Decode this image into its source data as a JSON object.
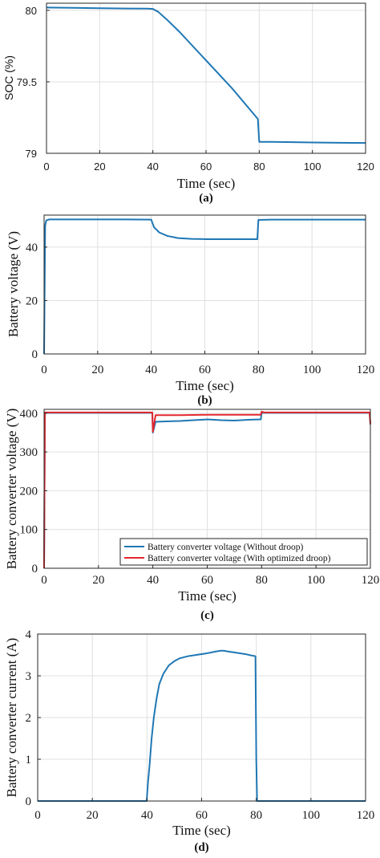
{
  "chart_data": [
    {
      "type": "line",
      "caption": "(a)",
      "xlabel": "Time (sec)",
      "ylabel": "SOC (%)",
      "xlim": [
        0,
        120
      ],
      "ylim": [
        79,
        80.05
      ],
      "xticks": [
        0,
        20,
        40,
        60,
        80,
        100,
        120
      ],
      "yticks": [
        79,
        79.5,
        80
      ],
      "ytick_labels": [
        "79",
        "79.5",
        "80"
      ],
      "grid": true,
      "series": [
        {
          "color": "#1f77b4",
          "x": [
            0,
            10,
            20,
            30,
            38,
            40,
            42,
            45,
            50,
            60,
            70,
            79.5,
            80,
            85,
            100,
            110,
            120
          ],
          "y": [
            80.02,
            80.018,
            80.015,
            80.013,
            80.012,
            80.01,
            79.99,
            79.94,
            79.85,
            79.65,
            79.45,
            79.24,
            79.08,
            79.08,
            79.076,
            79.074,
            79.072
          ]
        }
      ]
    },
    {
      "type": "line",
      "caption": "(b)",
      "xlabel": "Time (sec)",
      "ylabel": "Battery voltage (V)",
      "xlim": [
        0,
        120
      ],
      "ylim": [
        0,
        52
      ],
      "xticks": [
        0,
        20,
        40,
        60,
        80,
        100,
        120
      ],
      "yticks": [
        0,
        20,
        40
      ],
      "ytick_labels": [
        "0",
        "20",
        "40"
      ],
      "grid": true,
      "series": [
        {
          "color": "#1f77b4",
          "x": [
            0,
            0.4,
            0.8,
            2,
            10,
            20,
            30,
            40,
            41,
            43,
            46,
            50,
            55,
            60,
            70,
            79.6,
            80,
            85,
            100,
            110,
            120
          ],
          "y": [
            0,
            48,
            50,
            50.4,
            50.4,
            50.4,
            50.4,
            50.3,
            47.5,
            45.5,
            44.2,
            43.4,
            43.1,
            43,
            43,
            43,
            50.2,
            50.3,
            50.3,
            50.3,
            50.3
          ]
        }
      ]
    },
    {
      "type": "line",
      "caption": "(c)",
      "xlabel": "Time (sec)",
      "ylabel": "Battery converter voltage (V)",
      "xlim": [
        0,
        120
      ],
      "ylim": [
        0,
        410
      ],
      "xticks": [
        0,
        20,
        40,
        60,
        80,
        100,
        120
      ],
      "yticks": [
        0,
        100,
        200,
        300,
        400
      ],
      "ytick_labels": [
        "0",
        "100",
        "200",
        "300",
        "400"
      ],
      "grid": true,
      "legend": "bottom-right",
      "series": [
        {
          "name": "Battery converter voltage (Without droop)",
          "color": "#1f77b4",
          "x": [
            0,
            0.3,
            1,
            10,
            20,
            30,
            39.8,
            40,
            41,
            45,
            50,
            55,
            60,
            65,
            70,
            75,
            79.7,
            80,
            81,
            100,
            119.7,
            120
          ],
          "y": [
            0,
            400,
            401,
            401,
            401,
            401,
            401,
            350,
            378,
            379,
            380,
            382,
            384,
            382,
            381,
            383,
            384,
            401,
            401,
            401,
            401,
            371
          ]
        },
        {
          "name": "Battery converter voltage (With optimized droop)",
          "color": "#e3282e",
          "x": [
            0,
            0.3,
            1,
            10,
            20,
            30,
            39.8,
            40,
            41,
            50,
            60,
            70,
            79.7,
            80,
            81,
            100,
            119.7,
            120
          ],
          "y": [
            0,
            402,
            402,
            402,
            402,
            402,
            402,
            352,
            395,
            395,
            396,
            396,
            396,
            404,
            402,
            402,
            402,
            372
          ]
        }
      ]
    },
    {
      "type": "line",
      "caption": "(d)",
      "xlabel": "Time (sec)",
      "ylabel": "Battery converter current (A)",
      "xlim": [
        0,
        120
      ],
      "ylim": [
        0,
        4
      ],
      "xticks": [
        0,
        20,
        40,
        60,
        80,
        100,
        120
      ],
      "yticks": [
        0,
        1,
        2,
        3,
        4
      ],
      "ytick_labels": [
        "0",
        "1",
        "2",
        "3",
        "4"
      ],
      "grid": true,
      "series": [
        {
          "color": "#1f77b4",
          "x": [
            0,
            10,
            20,
            30,
            39.9,
            40.3,
            41,
            41.7,
            42.5,
            43.5,
            44.5,
            46,
            48,
            50,
            52,
            55,
            58,
            62,
            65,
            67,
            68,
            70,
            73,
            76,
            78,
            79.7,
            80,
            80.3,
            90,
            100,
            110,
            120
          ],
          "y": [
            0,
            0,
            0,
            0,
            0,
            0.4,
            0.9,
            1.5,
            2.0,
            2.45,
            2.8,
            3.05,
            3.25,
            3.35,
            3.42,
            3.47,
            3.5,
            3.54,
            3.58,
            3.6,
            3.6,
            3.58,
            3.55,
            3.52,
            3.49,
            3.47,
            1.0,
            0,
            0,
            0,
            0,
            0
          ]
        }
      ]
    }
  ]
}
